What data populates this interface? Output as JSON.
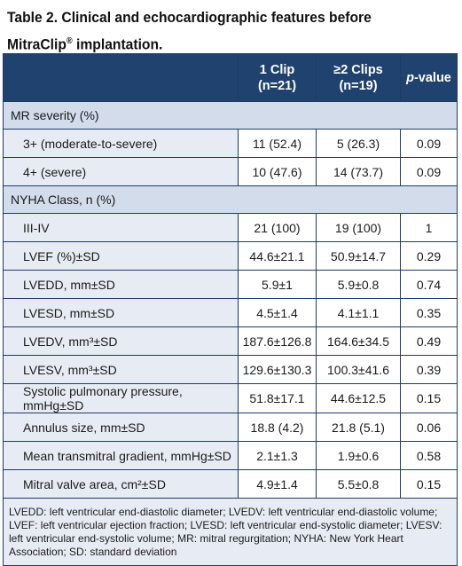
{
  "title": {
    "line1": "Table 2. Clinical and echocardiographic features before",
    "line2_prefix": "MitraClip",
    "line2_reg": "®",
    "line2_suffix": " implantation."
  },
  "header": {
    "col1": "",
    "col2_line1": "1 Clip",
    "col2_line2": "(n=21)",
    "col3_line1": "≥2 Clips",
    "col3_line2": "(n=19)",
    "col4_italic": "p",
    "col4_rest": "-value"
  },
  "rows": [
    {
      "type": "section",
      "label": "MR severity (%)"
    },
    {
      "type": "data",
      "label": "3+ (moderate-to-severe)",
      "c1": "11 (52.4)",
      "c2": "5 (26.3)",
      "p": "0.09"
    },
    {
      "type": "data",
      "label": "4+ (severe)",
      "c1": "10 (47.6)",
      "c2": "14 (73.7)",
      "p": "0.09"
    },
    {
      "type": "section",
      "label": "NYHA Class, n (%)"
    },
    {
      "type": "data",
      "label": "III-IV",
      "c1": "21 (100)",
      "c2": "19 (100)",
      "p": "1"
    },
    {
      "type": "data",
      "label": "LVEF (%)±SD",
      "c1": "44.6±21.1",
      "c2": "50.9±14.7",
      "p": "0.29"
    },
    {
      "type": "data",
      "label": "LVEDD, mm±SD",
      "c1": "5.9±1",
      "c2": "5.9±0.8",
      "p": "0.74"
    },
    {
      "type": "data",
      "label": "LVESD, mm±SD",
      "c1": "4.5±1.4",
      "c2": "4.1±1.1",
      "p": "0.35"
    },
    {
      "type": "data",
      "label": "LVEDV, mm³±SD",
      "c1": "187.6±126.8",
      "c2": "164.6±34.5",
      "p": "0.49"
    },
    {
      "type": "data",
      "label": "LVESV, mm³±SD",
      "c1": "129.6±130.3",
      "c2": "100.3±41.6",
      "p": "0.39"
    },
    {
      "type": "data",
      "label": "Systolic pulmonary pressure, mmHg±SD",
      "c1": "51.8±17.1",
      "c2": "44.6±12.5",
      "p": "0.15"
    },
    {
      "type": "data",
      "label": "Annulus size, mm±SD",
      "c1": "18.8 (4.2)",
      "c2": "21.8 (5.1)",
      "p": "0.06"
    },
    {
      "type": "data",
      "label": "Mean transmitral gradient, mmHg±SD",
      "c1": "2.1±1.3",
      "c2": "1.9±0.6",
      "p": "0.58"
    },
    {
      "type": "data",
      "label": "Mitral valve area, cm²±SD",
      "c1": "4.9±1.4",
      "c2": "5.5±0.8",
      "p": "0.15"
    }
  ],
  "footnote": "LVEDD: left ventricular end-diastolic diameter; LVEDV: left ventricular end-diastolic volume; LVEF: left ventricular ejection fraction; LVESD: left ventricular end-systolic diameter; LVESV: left ventricular end-systolic volume; MR: mitral regurgitation; NYHA: New York Heart Association; SD: standard deviation"
}
